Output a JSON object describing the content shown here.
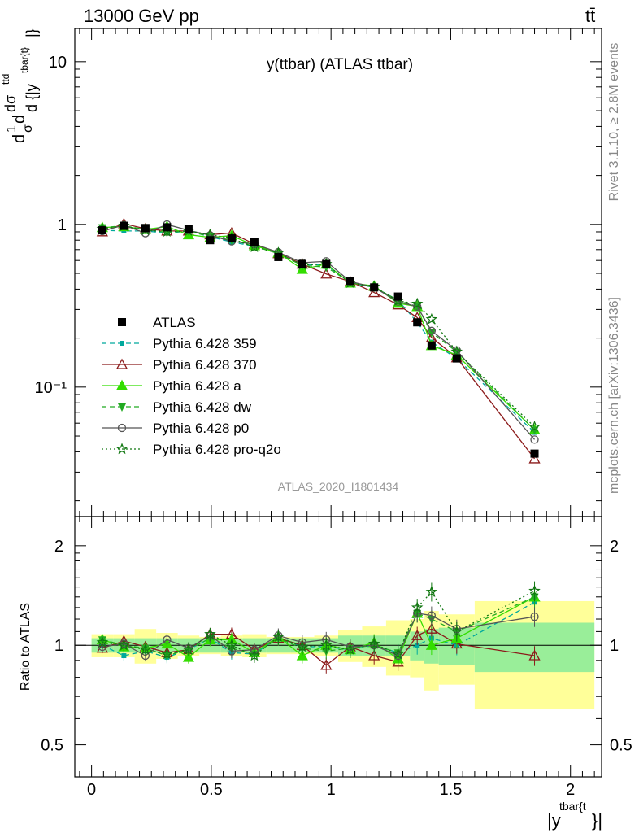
{
  "header": {
    "energy_label": "13000 GeV pp",
    "process_label": "tt̄",
    "main_title": "y(ttbar) (ATLAS ttbar)",
    "rivet_label": "Rivet 3.1.10, ≥ 2.8M events",
    "mcplots_label": "mcplots.cern.ch [arXiv:1306.3436]",
    "analysis_id": "ATLAS_2020_I1801434"
  },
  "axes": {
    "main_ylabel_parts": [
      "d",
      "1",
      "σ",
      "d",
      "dσ",
      "ttd",
      "d {|y",
      "tbar{t}",
      "|}"
    ],
    "ratio_ylabel": "Ratio to ATLAS",
    "xlabel_main": "|y",
    "xlabel_sup": "tbar{t",
    "xlabel_tail": "}|",
    "main_yticks": [
      {
        "value": 10,
        "label": "10"
      },
      {
        "value": 1,
        "label": "1"
      },
      {
        "value": 0.1,
        "label": "10⁻¹"
      }
    ],
    "ratio_yticks": [
      {
        "value": 2,
        "label": "2"
      },
      {
        "value": 1,
        "label": "1"
      },
      {
        "value": 0.5,
        "label": "0.5"
      }
    ],
    "xticks": [
      {
        "value": 0,
        "label": "0"
      },
      {
        "value": 0.5,
        "label": "0.5"
      },
      {
        "value": 1,
        "label": "1"
      },
      {
        "value": 1.5,
        "label": "1.5"
      },
      {
        "value": 2,
        "label": "2"
      }
    ]
  },
  "legend": [
    {
      "key": "atlas",
      "label": "ATLAS"
    },
    {
      "key": "p359",
      "label": "Pythia 6.428 359"
    },
    {
      "key": "p370",
      "label": "Pythia 6.428 370"
    },
    {
      "key": "pa",
      "label": "Pythia 6.428 a"
    },
    {
      "key": "pdw",
      "label": "Pythia 6.428 dw"
    },
    {
      "key": "pp0",
      "label": "Pythia 6.428 p0"
    },
    {
      "key": "pq2o",
      "label": "Pythia 6.428 pro-q2o"
    }
  ],
  "chart_data": {
    "type": "scatter",
    "title": "y(ttbar) (ATLAS ttbar)",
    "xlabel": "|y^{tbar{t}}|",
    "ylabel": "1/σ dσ/d|y^{tbar{t}}|",
    "xlim": [
      -0.07,
      2.13
    ],
    "ylim_main": [
      0.016,
      16
    ],
    "yscale_main": "log",
    "ylim_ratio": [
      0.4,
      2.45
    ],
    "yscale_ratio": "log",
    "bins_lo": [
      0.0,
      0.09,
      0.18,
      0.27,
      0.36,
      0.45,
      0.54,
      0.63,
      0.73,
      0.83,
      0.93,
      1.03,
      1.13,
      1.23,
      1.33,
      1.39,
      1.45,
      1.6
    ],
    "bins_hi": [
      0.09,
      0.18,
      0.27,
      0.36,
      0.45,
      0.54,
      0.63,
      0.73,
      0.83,
      0.93,
      1.03,
      1.13,
      1.23,
      1.33,
      1.39,
      1.45,
      1.6,
      2.1
    ],
    "x": [
      0.045,
      0.135,
      0.225,
      0.315,
      0.405,
      0.495,
      0.585,
      0.68,
      0.78,
      0.88,
      0.98,
      1.08,
      1.18,
      1.28,
      1.36,
      1.42,
      1.525,
      1.85
    ],
    "atlas": [
      0.92,
      0.98,
      0.95,
      0.96,
      0.94,
      0.8,
      0.82,
      0.78,
      0.63,
      0.57,
      0.57,
      0.45,
      0.41,
      0.36,
      0.25,
      0.18,
      0.15,
      0.039
    ],
    "band_inner": [
      0.05,
      0.05,
      0.05,
      0.05,
      0.05,
      0.05,
      0.05,
      0.05,
      0.05,
      0.05,
      0.05,
      0.07,
      0.07,
      0.07,
      0.1,
      0.12,
      0.13,
      0.17
    ],
    "band_outer": [
      0.08,
      0.08,
      0.12,
      0.09,
      0.07,
      0.06,
      0.07,
      0.08,
      0.06,
      0.06,
      0.07,
      0.11,
      0.14,
      0.19,
      0.2,
      0.27,
      0.24,
      0.36
    ],
    "series": [
      {
        "key": "p359",
        "name": "Pythia 6.428 359",
        "color": "#00a99d",
        "marker": "square-small",
        "dash": "6,4",
        "ratio": [
          1.0,
          0.93,
          0.96,
          0.92,
          0.97,
          1.05,
          0.95,
          0.94,
          1.06,
          0.99,
          0.99,
          0.97,
          1.0,
          0.95,
          1.0,
          1.05,
          1.0,
          1.35
        ]
      },
      {
        "key": "p370",
        "name": "Pythia 6.428 370",
        "color": "#8b1a1a",
        "marker": "triangle-open",
        "dash": "",
        "ratio": [
          0.98,
          1.03,
          0.99,
          0.95,
          0.97,
          1.08,
          1.08,
          0.97,
          1.05,
          1.0,
          0.87,
          0.99,
          0.93,
          0.89,
          1.07,
          1.12,
          1.01,
          0.93
        ]
      },
      {
        "key": "pa",
        "name": "Pythia 6.428 a",
        "color": "#33dd00",
        "marker": "triangle",
        "dash": "",
        "ratio": [
          1.04,
          0.99,
          0.98,
          1.01,
          0.92,
          1.04,
          1.04,
          0.95,
          1.06,
          0.93,
          1.0,
          0.97,
          1.02,
          0.91,
          1.25,
          1.0,
          1.05,
          1.4
        ]
      },
      {
        "key": "pdw",
        "name": "Pythia 6.428 dw",
        "color": "#22aa22",
        "marker": "triangle-down",
        "dash": "6,4",
        "ratio": [
          1.04,
          1.0,
          0.98,
          0.93,
          0.97,
          1.05,
          0.98,
          0.94,
          1.05,
          0.98,
          0.96,
          0.98,
          1.0,
          0.95,
          1.25,
          1.2,
          1.1,
          1.4
        ]
      },
      {
        "key": "pp0",
        "name": "Pythia 6.428 p0",
        "color": "#555555",
        "marker": "circle-open",
        "dash": "",
        "ratio": [
          0.99,
          1.01,
          0.93,
          1.04,
          0.98,
          1.07,
          0.96,
          0.97,
          1.07,
          1.02,
          1.04,
          0.99,
          1.0,
          0.93,
          1.25,
          1.23,
          1.12,
          1.22
        ]
      },
      {
        "key": "pq2o",
        "name": "Pythia 6.428 pro-q2o",
        "color": "#117711",
        "marker": "star-open",
        "dash": "2,3",
        "ratio": [
          1.02,
          1.0,
          0.97,
          0.94,
          0.97,
          1.08,
          1.0,
          0.93,
          1.06,
          0.99,
          1.0,
          0.97,
          1.01,
          0.94,
          1.3,
          1.45,
          1.1,
          1.46
        ]
      }
    ]
  }
}
